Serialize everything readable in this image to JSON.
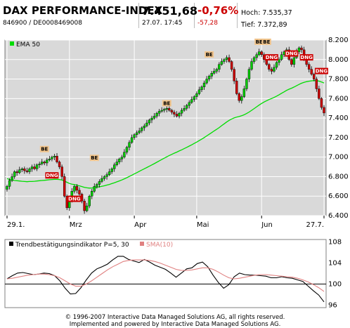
{
  "header": {
    "name": "DAX PERFORMANCE-INDEX",
    "ids": "846900  /  DE0008469008",
    "price": "7.451,68",
    "datetime": "27.07. 17:45",
    "change_pct": "-0,76%",
    "change_abs": "-57,28",
    "high": "Hoch: 7.535,37",
    "low": "Tief: 7.372,89"
  },
  "footer": {
    "line1": "© 1996-2007 Interactive Data Managed Solutions AG, all rights reserved.",
    "line2": "Implemented and powered by Interactive Data Managed Solutions AG."
  },
  "colors": {
    "up": "#00cc00",
    "down": "#cc0000",
    "ema": "#00dd00",
    "indicator": "#000000",
    "sma": "#e08080",
    "signal_be": "#f2c58c",
    "signal_dng": "#cc0000",
    "panel_bg": "#d9d9d9"
  },
  "chart_data": [
    {
      "type": "candlestick",
      "legend": "EMA 50",
      "x_tick_labels": [
        "29.1.",
        "Mrz",
        "Apr",
        "Mai",
        "Jun",
        "27.7."
      ],
      "y_ticks": [
        6400,
        6600,
        6800,
        7000,
        7200,
        7400,
        7600,
        7800,
        8000,
        8200
      ],
      "y_tick_labels": [
        "6.400",
        "6.600",
        "6.800",
        "7.000",
        "7.200",
        "7.400",
        "7.600",
        "7.800",
        "8.000",
        "8.200"
      ],
      "ylim": [
        6400,
        8200
      ],
      "grid": true,
      "close": [
        6700,
        6760,
        6800,
        6850,
        6840,
        6870,
        6880,
        6860,
        6850,
        6880,
        6900,
        6880,
        6920,
        6930,
        6950,
        6940,
        6970,
        6980,
        7000,
        7010,
        6950,
        6900,
        6800,
        6600,
        6480,
        6550,
        6650,
        6700,
        6660,
        6620,
        6550,
        6450,
        6500,
        6600,
        6650,
        6700,
        6720,
        6750,
        6780,
        6800,
        6820,
        6850,
        6880,
        6920,
        6950,
        6980,
        7000,
        7050,
        7100,
        7150,
        7200,
        7230,
        7250,
        7270,
        7300,
        7320,
        7350,
        7380,
        7400,
        7420,
        7450,
        7470,
        7480,
        7490,
        7500,
        7480,
        7460,
        7440,
        7420,
        7450,
        7480,
        7500,
        7530,
        7560,
        7590,
        7620,
        7650,
        7690,
        7720,
        7760,
        7800,
        7830,
        7860,
        7880,
        7900,
        7950,
        7980,
        8000,
        8020,
        7980,
        7900,
        7780,
        7650,
        7580,
        7620,
        7700,
        7800,
        7900,
        7980,
        8020,
        8050,
        8080,
        8050,
        8000,
        7950,
        7900,
        7880,
        7920,
        7970,
        8000,
        8050,
        8080,
        8100,
        8000,
        7950,
        8020,
        8080,
        8120,
        8100,
        8000,
        7950,
        7900,
        7850,
        7800,
        7700,
        7600,
        7509,
        7452
      ],
      "ema50": [
        6780,
        6770,
        6765,
        6760,
        6758,
        6755,
        6752,
        6750,
        6748,
        6750,
        6750,
        6752,
        6755,
        6758,
        6760,
        6762,
        6765,
        6768,
        6770,
        6772,
        6772,
        6770,
        6765,
        6755,
        6742,
        6730,
        6722,
        6718,
        6712,
        6705,
        6698,
        6690,
        6685,
        6682,
        6683,
        6686,
        6690,
        6695,
        6700,
        6706,
        6713,
        6720,
        6728,
        6737,
        6746,
        6756,
        6766,
        6777,
        6789,
        6802,
        6815,
        6828,
        6841,
        6854,
        6867,
        6880,
        6893,
        6906,
        6920,
        6933,
        6947,
        6961,
        6975,
        6989,
        7003,
        7016,
        7028,
        7040,
        7051,
        7063,
        7075,
        7087,
        7100,
        7113,
        7126,
        7140,
        7154,
        7169,
        7184,
        7200,
        7217,
        7234,
        7251,
        7268,
        7285,
        7303,
        7322,
        7341,
        7360,
        7377,
        7391,
        7402,
        7410,
        7416,
        7424,
        7434,
        7447,
        7462,
        7479,
        7497,
        7515,
        7533,
        7550,
        7565,
        7578,
        7590,
        7600,
        7612,
        7625,
        7639,
        7654,
        7669,
        7684,
        7696,
        7706,
        7718,
        7731,
        7745,
        7757,
        7766,
        7773,
        7778,
        7782,
        7785,
        7784,
        7779,
        7770,
        7760
      ],
      "annotations": [
        {
          "text": "BE",
          "index": 15,
          "value": 7050
        },
        {
          "text": "DNG",
          "index": 18,
          "value": 6780
        },
        {
          "text": "DNG",
          "index": 27,
          "value": 6540
        },
        {
          "text": "BE",
          "index": 35,
          "value": 6960
        },
        {
          "text": "BE",
          "index": 64,
          "value": 7520
        },
        {
          "text": "BE",
          "index": 81,
          "value": 8020
        },
        {
          "text": "BE",
          "index": 101,
          "value": 8150
        },
        {
          "text": "BE",
          "index": 104,
          "value": 8150
        },
        {
          "text": "DNG",
          "index": 106,
          "value": 7990
        },
        {
          "text": "DNG",
          "index": 114,
          "value": 8030
        },
        {
          "text": "DNG",
          "index": 120,
          "value": 7990
        },
        {
          "text": "DNG",
          "index": 126,
          "value": 7850
        }
      ]
    },
    {
      "type": "line",
      "legend": [
        "Trendbestätigungsindikator P=5, 30",
        "SMA(10)"
      ],
      "y_ticks": [
        96,
        100,
        104,
        108
      ],
      "y_tick_labels": [
        "96",
        "100",
        "104",
        "108"
      ],
      "ylim": [
        95.5,
        108.5
      ],
      "reference_line": 100,
      "series": [
        {
          "name": "Trendbestätigungsindikator P=5, 30",
          "values": [
            101,
            101.6,
            102.1,
            102.2,
            102,
            101.8,
            101.9,
            102.1,
            102,
            101.6,
            100.6,
            99.2,
            98.1,
            98.2,
            99.3,
            100.8,
            102.1,
            102.9,
            103.3,
            103.8,
            104.6,
            105.3,
            105.3,
            104.7,
            104.4,
            104.1,
            104.7,
            104.2,
            103.6,
            103.2,
            102.8,
            102.1,
            101.3,
            102.1,
            102.9,
            103.1,
            103.9,
            104.2,
            103.3,
            101.7,
            100.3,
            99.2,
            99.9,
            101.4,
            102.1,
            101.8,
            101.7,
            101.7,
            101.6,
            101.5,
            101.2,
            101.2,
            101.4,
            101.2,
            101.1,
            100.8,
            100.5,
            99.6,
            98.7,
            97.9,
            96.6
          ]
        },
        {
          "name": "SMA(10)",
          "values": [
            101,
            101.1,
            101.3,
            101.5,
            101.7,
            101.8,
            101.9,
            101.9,
            101.8,
            101.6,
            101.2,
            100.6,
            100,
            99.6,
            99.6,
            100,
            100.6,
            101.3,
            102,
            102.7,
            103.3,
            103.8,
            104.3,
            104.5,
            104.6,
            104.6,
            104.6,
            104.5,
            104.3,
            104,
            103.6,
            103.2,
            102.8,
            102.6,
            102.6,
            102.7,
            102.9,
            103.1,
            103.1,
            102.8,
            102.3,
            101.7,
            101.2,
            101,
            101.1,
            101.3,
            101.5,
            101.7,
            101.8,
            101.8,
            101.7,
            101.6,
            101.5,
            101.4,
            101.3,
            101.1,
            100.8,
            100.4,
            99.9,
            99.3,
            98.6
          ]
        }
      ]
    }
  ]
}
